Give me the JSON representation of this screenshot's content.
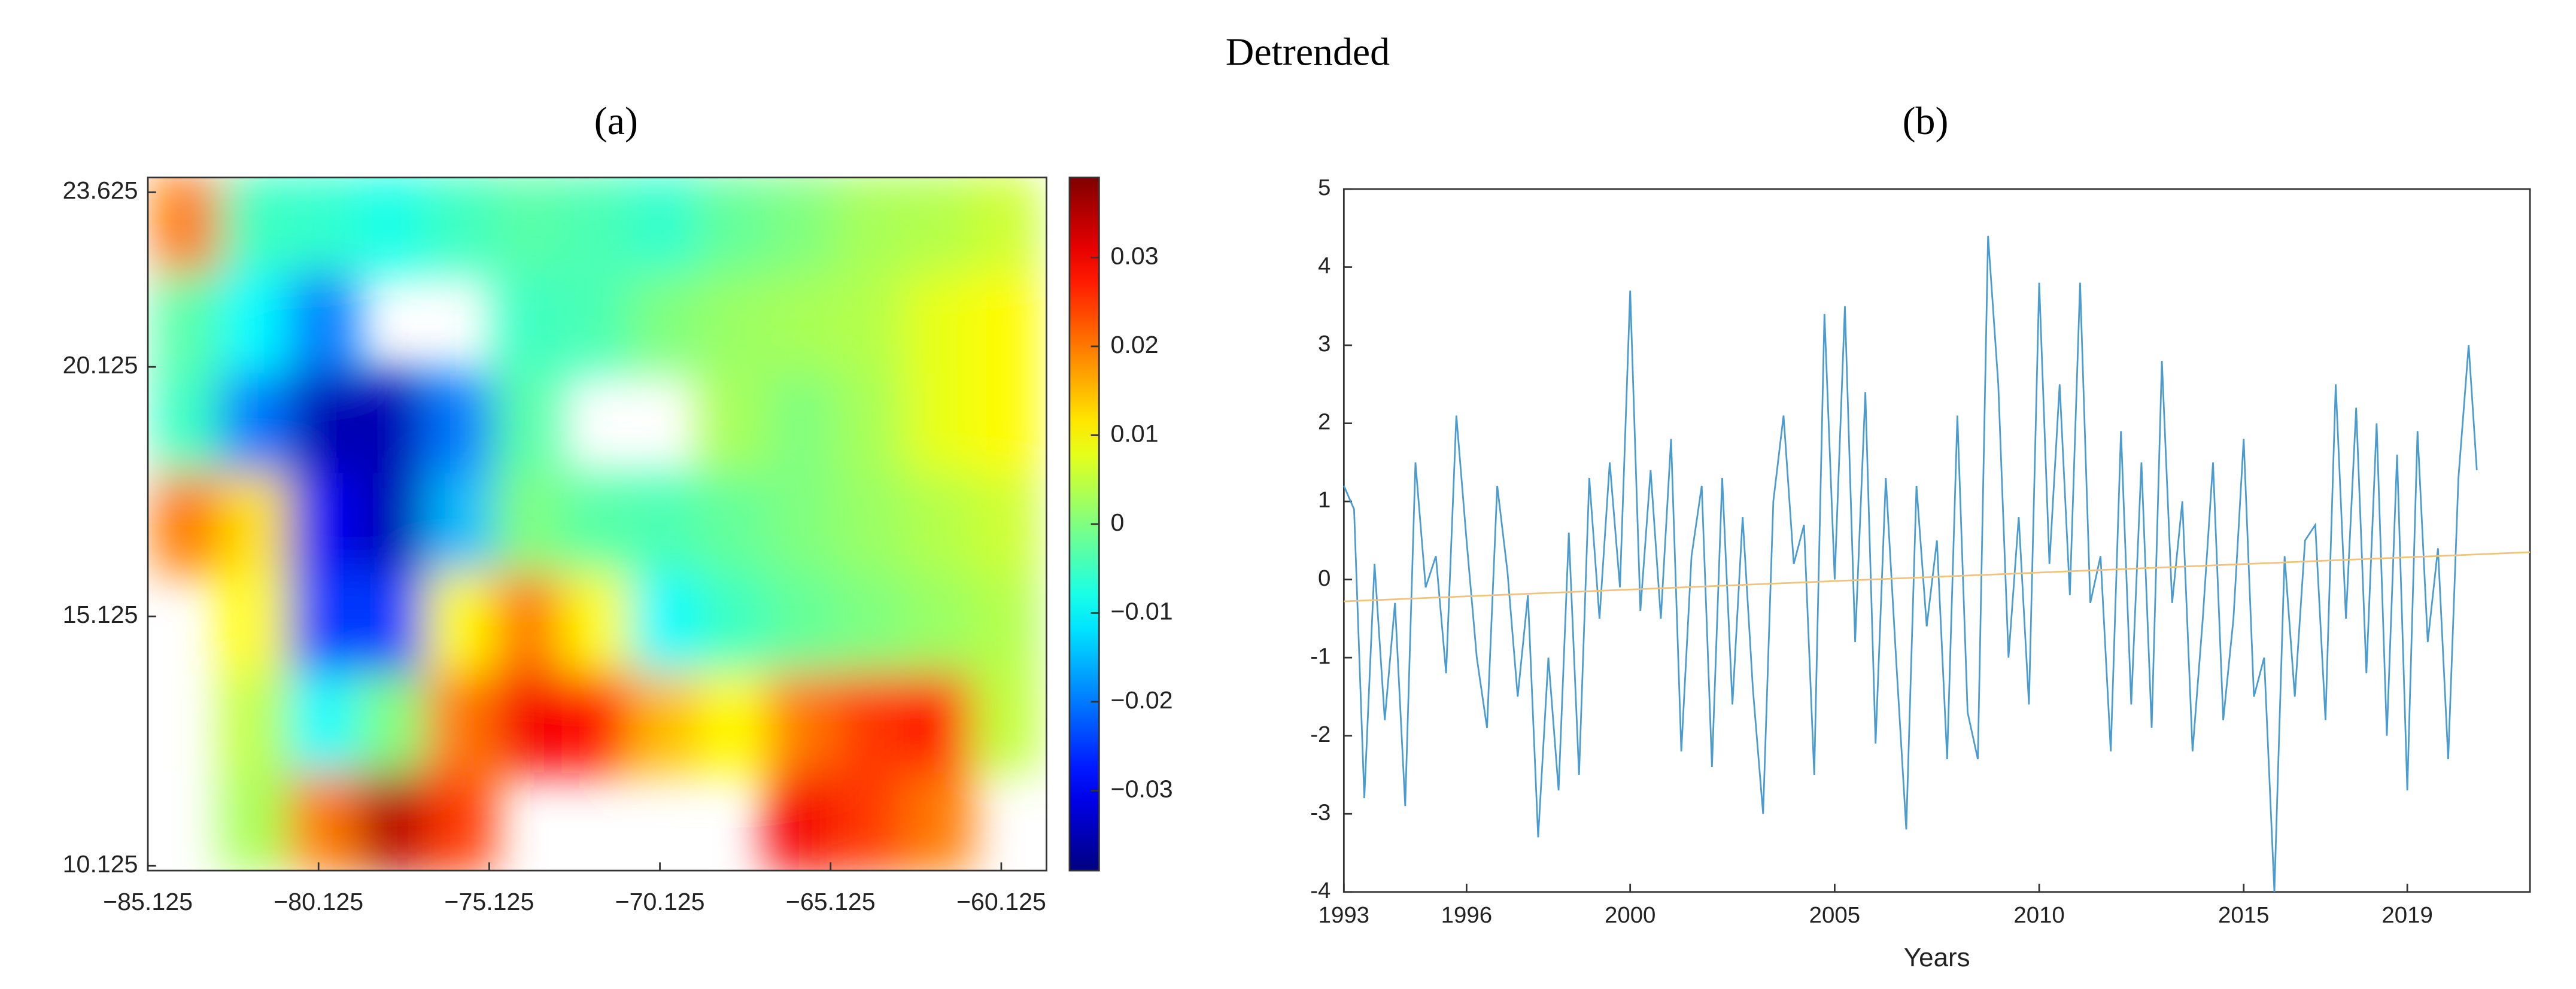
{
  "figure_title": "Detrended",
  "chart_data": [
    {
      "type": "heatmap",
      "title": "(a)",
      "xlim": [
        -85.125,
        -58.8
      ],
      "ylim": [
        10.03,
        23.92
      ],
      "xticks": [
        {
          "value": -85.125,
          "label": "−85.125"
        },
        {
          "value": -80.125,
          "label": "−80.125"
        },
        {
          "value": -75.125,
          "label": "−75.125"
        },
        {
          "value": -70.125,
          "label": "−70.125"
        },
        {
          "value": -65.125,
          "label": "−65.125"
        },
        {
          "value": -60.125,
          "label": "−60.125"
        }
      ],
      "yticks": [
        10.125,
        15.125,
        20.125,
        23.625
      ],
      "lon": [
        -84,
        -82,
        -80,
        -78,
        -76,
        -74,
        -72,
        -70,
        -68,
        -66,
        -64,
        -62,
        -60
      ],
      "lat": [
        23,
        21,
        19,
        17,
        15,
        13,
        11
      ],
      "z": [
        [
          0.02,
          -0.005,
          -0.006,
          -0.008,
          -0.005,
          -0.003,
          -0.004,
          -0.006,
          -0.002,
          0,
          0.003,
          0.004,
          0.006
        ],
        [
          -0.003,
          -0.01,
          -0.02,
          null,
          null,
          -0.005,
          -0.004,
          0,
          0.002,
          0.003,
          0.004,
          0.008,
          0.01
        ],
        [
          -0.005,
          -0.02,
          -0.035,
          -0.035,
          -0.02,
          -0.003,
          null,
          null,
          0.003,
          0,
          0.003,
          0.008,
          0.01
        ],
        [
          0.02,
          0.012,
          -0.03,
          -0.035,
          -0.015,
          0,
          -0.003,
          -0.004,
          -0.002,
          0,
          0.002,
          0.004,
          0.006
        ],
        [
          null,
          0.01,
          -0.025,
          -0.025,
          0.01,
          0.02,
          0.01,
          -0.01,
          -0.005,
          -0.002,
          0,
          0.002,
          0.004
        ],
        [
          null,
          0.005,
          -0.01,
          0,
          0.02,
          0.03,
          0.028,
          0.015,
          0.01,
          0.02,
          0.025,
          0.028,
          0.005
        ],
        [
          null,
          0.003,
          0.02,
          0.035,
          0.025,
          null,
          null,
          null,
          null,
          0.03,
          0.025,
          0.02,
          null
        ]
      ],
      "colorbar": {
        "lim": [
          -0.039,
          0.039
        ],
        "ticks": [
          {
            "value": -0.03,
            "label": "−0.03"
          },
          {
            "value": -0.02,
            "label": "−0.02"
          },
          {
            "value": -0.01,
            "label": "−0.01"
          },
          0,
          0.01,
          0.02,
          0.03
        ]
      }
    },
    {
      "type": "line",
      "title": "(b)",
      "x_label": "Years",
      "xlim": [
        1993,
        2022
      ],
      "ylim": [
        -4,
        5
      ],
      "xticks": [
        1993,
        1996,
        2000,
        2005,
        2010,
        2015,
        2019
      ],
      "yticks": [
        -4,
        -3,
        -2,
        -1,
        0,
        1,
        2,
        3,
        4,
        5
      ],
      "x": [
        1993,
        1993.25,
        1993.5,
        1993.75,
        1994,
        1994.25,
        1994.5,
        1994.75,
        1995,
        1995.25,
        1995.5,
        1995.75,
        1996,
        1996.25,
        1996.5,
        1996.75,
        1997,
        1997.25,
        1997.5,
        1997.75,
        1998,
        1998.25,
        1998.5,
        1998.75,
        1999,
        1999.25,
        1999.5,
        1999.75,
        2000,
        2000.25,
        2000.5,
        2000.75,
        2001,
        2001.25,
        2001.5,
        2001.75,
        2002,
        2002.25,
        2002.5,
        2002.75,
        2003,
        2003.25,
        2003.5,
        2003.75,
        2004,
        2004.25,
        2004.5,
        2004.75,
        2005,
        2005.25,
        2005.5,
        2005.75,
        2006,
        2006.25,
        2006.5,
        2006.75,
        2007,
        2007.25,
        2007.5,
        2007.75,
        2008,
        2008.25,
        2008.5,
        2008.75,
        2009,
        2009.25,
        2009.5,
        2009.75,
        2010,
        2010.25,
        2010.5,
        2010.75,
        2011,
        2011.25,
        2011.5,
        2011.75,
        2012,
        2012.25,
        2012.5,
        2012.75,
        2013,
        2013.25,
        2013.5,
        2013.75,
        2014,
        2014.25,
        2014.5,
        2014.75,
        2015,
        2015.25,
        2015.5,
        2015.75,
        2016,
        2016.25,
        2016.5,
        2016.75,
        2017,
        2017.25,
        2017.5,
        2017.75,
        2018,
        2018.25,
        2018.5,
        2018.75,
        2019,
        2019.25,
        2019.5,
        2019.75,
        2020,
        2020.25,
        2020.5,
        2020.7
      ],
      "series": [
        {
          "color": "#4a9bd0",
          "values": [
            1.2,
            0.9,
            -2.8,
            0.2,
            -1.8,
            -0.3,
            -2.9,
            1.5,
            -0.1,
            0.3,
            -1.2,
            2.1,
            0.5,
            -1.0,
            -1.9,
            1.2,
            0.1,
            -1.5,
            -0.2,
            -3.3,
            -1.0,
            -2.7,
            0.6,
            -2.5,
            1.3,
            -0.5,
            1.5,
            -0.1,
            3.7,
            -0.4,
            1.4,
            -0.5,
            1.8,
            -2.2,
            0.3,
            1.2,
            -2.4,
            1.3,
            -1.6,
            0.8,
            -1.4,
            -3.0,
            1.0,
            2.1,
            0.2,
            0.7,
            -2.5,
            3.4,
            0.0,
            3.5,
            -0.8,
            2.4,
            -2.1,
            1.3,
            -1.0,
            -3.2,
            1.2,
            -0.6,
            0.5,
            -2.3,
            2.1,
            -1.7,
            -2.3,
            4.4,
            2.5,
            -1.0,
            0.8,
            -1.6,
            3.8,
            0.2,
            2.5,
            -0.2,
            3.8,
            -0.3,
            0.3,
            -2.2,
            1.9,
            -1.6,
            1.5,
            -1.9,
            2.8,
            -0.3,
            1.0,
            -2.2,
            -0.5,
            1.5,
            -1.8,
            -0.5,
            1.8,
            -1.5,
            -1.0,
            -4.0,
            0.3,
            -1.5,
            0.5,
            0.7,
            -1.8,
            2.5,
            -0.5,
            2.2,
            -1.2,
            2.0,
            -2.0,
            1.6,
            -2.7,
            1.9,
            -0.8,
            0.4,
            -2.3,
            1.3,
            3.0,
            1.4
          ]
        },
        {
          "color": "#f0c27a",
          "x": [
            1993,
            2022
          ],
          "values": [
            -0.28,
            0.35
          ]
        }
      ]
    }
  ]
}
